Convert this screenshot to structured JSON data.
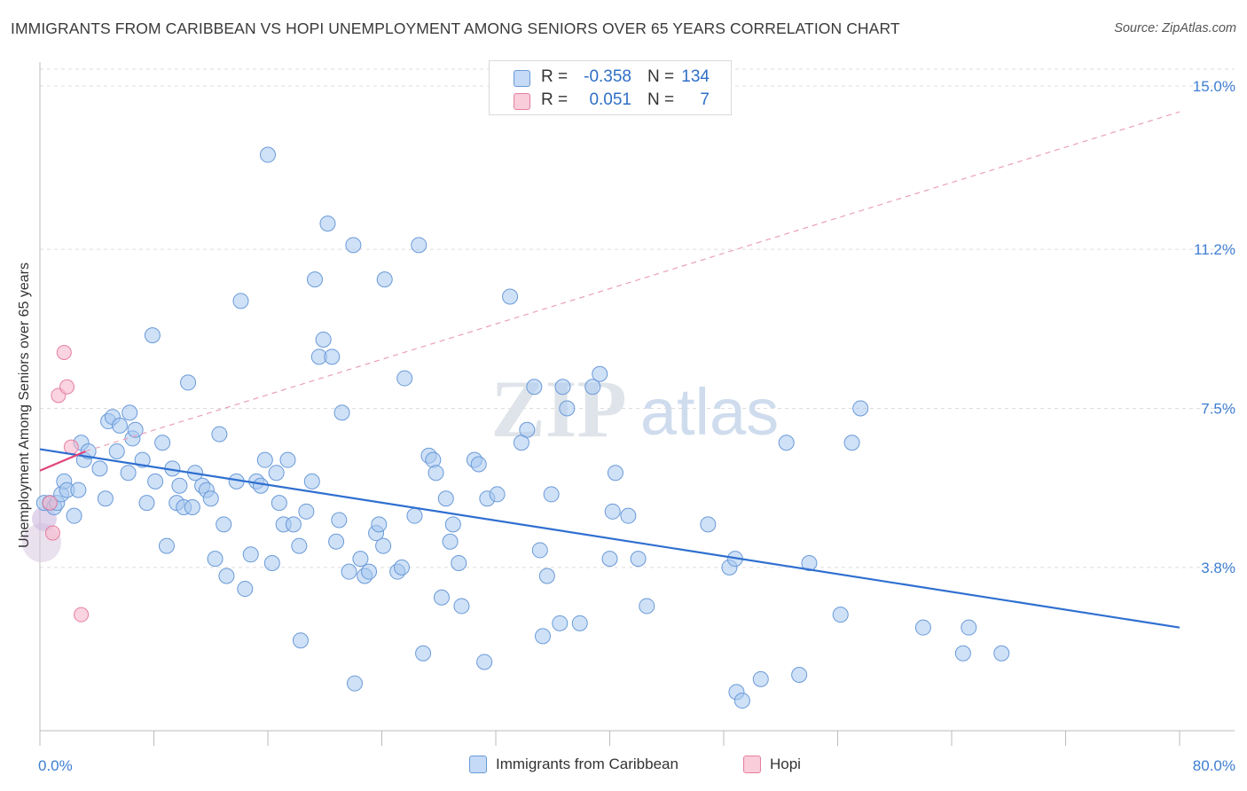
{
  "title": "IMMIGRANTS FROM CARIBBEAN VS HOPI UNEMPLOYMENT AMONG SENIORS OVER 65 YEARS CORRELATION CHART",
  "source": "Source: ZipAtlas.com",
  "watermark": {
    "zip": "ZIP",
    "atlas": "atlas"
  },
  "legend_top": {
    "rows": [
      {
        "r_label": "R =",
        "r_value": "-0.358",
        "n_label": "N =",
        "n_value": "134"
      },
      {
        "r_label": "R =",
        "r_value": "0.051",
        "n_label": "N =",
        "n_value": "7"
      }
    ]
  },
  "legend_bottom": {
    "series1": "Immigrants from Caribbean",
    "series2": "Hopi"
  },
  "colors": {
    "blue_fill": "#a8c8f0",
    "blue_stroke": "#6a9ad8",
    "blue_line": "#2f6fd0",
    "pink_fill": "#f7b8cc",
    "pink_stroke": "#e67fa0",
    "pink_line": "#e0457a",
    "tick_label": "#3f7ed2",
    "grid": "#dcdcdc"
  },
  "chart_data": {
    "type": "scatter",
    "title": "IMMIGRANTS FROM CARIBBEAN VS HOPI UNEMPLOYMENT AMONG SENIORS OVER 65 YEARS CORRELATION CHART",
    "xlabel": "",
    "ylabel": "Unemployment Among Seniors over 65 years",
    "xlim": [
      0,
      80
    ],
    "ylim": [
      0,
      15.4
    ],
    "x_tick_labels": [
      {
        "value": 0,
        "label": "0.0%"
      },
      {
        "value": 80,
        "label": "80.0%"
      }
    ],
    "y_ticks": [
      {
        "value": 3.8,
        "label": "3.8%"
      },
      {
        "value": 7.5,
        "label": "7.5%"
      },
      {
        "value": 11.2,
        "label": "11.2%"
      },
      {
        "value": 15.0,
        "label": "15.0%"
      }
    ],
    "series": [
      {
        "name": "Immigrants from Caribbean",
        "color": "#a8c8f0",
        "trend": {
          "x": [
            0,
            80
          ],
          "y": [
            6.55,
            2.4
          ]
        },
        "points": [
          [
            0.3,
            5.3
          ],
          [
            0.7,
            5.3
          ],
          [
            1.0,
            5.2
          ],
          [
            1.2,
            5.3
          ],
          [
            1.5,
            5.5
          ],
          [
            1.7,
            5.8
          ],
          [
            1.9,
            5.6
          ],
          [
            2.4,
            5.0
          ],
          [
            2.7,
            5.6
          ],
          [
            2.9,
            6.7
          ],
          [
            3.1,
            6.3
          ],
          [
            3.4,
            6.5
          ],
          [
            4.2,
            6.1
          ],
          [
            4.6,
            5.4
          ],
          [
            4.8,
            7.2
          ],
          [
            5.1,
            7.3
          ],
          [
            5.4,
            6.5
          ],
          [
            5.6,
            7.1
          ],
          [
            6.2,
            6.0
          ],
          [
            6.3,
            7.4
          ],
          [
            6.5,
            6.8
          ],
          [
            6.7,
            7.0
          ],
          [
            7.2,
            6.3
          ],
          [
            7.5,
            5.3
          ],
          [
            7.9,
            9.2
          ],
          [
            8.1,
            5.8
          ],
          [
            8.6,
            6.7
          ],
          [
            8.9,
            4.3
          ],
          [
            9.3,
            6.1
          ],
          [
            9.6,
            5.3
          ],
          [
            9.8,
            5.7
          ],
          [
            10.1,
            5.2
          ],
          [
            10.4,
            8.1
          ],
          [
            10.7,
            5.2
          ],
          [
            10.9,
            6.0
          ],
          [
            11.4,
            5.7
          ],
          [
            11.7,
            5.6
          ],
          [
            12.0,
            5.4
          ],
          [
            12.3,
            4.0
          ],
          [
            12.6,
            6.9
          ],
          [
            12.9,
            4.8
          ],
          [
            13.1,
            3.6
          ],
          [
            13.8,
            5.8
          ],
          [
            14.1,
            10.0
          ],
          [
            14.4,
            3.3
          ],
          [
            14.8,
            4.1
          ],
          [
            15.2,
            5.8
          ],
          [
            15.5,
            5.7
          ],
          [
            15.8,
            6.3
          ],
          [
            16.0,
            13.4
          ],
          [
            16.3,
            3.9
          ],
          [
            16.6,
            6.0
          ],
          [
            16.8,
            5.3
          ],
          [
            17.1,
            4.8
          ],
          [
            17.4,
            6.3
          ],
          [
            17.8,
            4.8
          ],
          [
            18.2,
            4.3
          ],
          [
            18.3,
            2.1
          ],
          [
            18.7,
            5.1
          ],
          [
            19.1,
            5.8
          ],
          [
            19.3,
            10.5
          ],
          [
            19.6,
            8.7
          ],
          [
            19.9,
            9.1
          ],
          [
            20.2,
            11.8
          ],
          [
            20.5,
            8.7
          ],
          [
            20.8,
            4.4
          ],
          [
            21.0,
            4.9
          ],
          [
            21.2,
            7.4
          ],
          [
            21.7,
            3.7
          ],
          [
            22.0,
            11.3
          ],
          [
            22.1,
            1.1
          ],
          [
            22.5,
            4.0
          ],
          [
            22.8,
            3.6
          ],
          [
            23.1,
            3.7
          ],
          [
            23.6,
            4.6
          ],
          [
            23.8,
            4.8
          ],
          [
            24.1,
            4.3
          ],
          [
            24.2,
            10.5
          ],
          [
            25.1,
            3.7
          ],
          [
            25.4,
            3.8
          ],
          [
            25.6,
            8.2
          ],
          [
            26.3,
            5.0
          ],
          [
            26.6,
            11.3
          ],
          [
            26.9,
            1.8
          ],
          [
            27.3,
            6.4
          ],
          [
            27.6,
            6.3
          ],
          [
            27.8,
            6.0
          ],
          [
            28.2,
            3.1
          ],
          [
            28.5,
            5.4
          ],
          [
            28.8,
            4.4
          ],
          [
            29.0,
            4.8
          ],
          [
            29.4,
            3.9
          ],
          [
            29.6,
            2.9
          ],
          [
            30.5,
            6.3
          ],
          [
            30.8,
            6.2
          ],
          [
            31.2,
            1.6
          ],
          [
            31.4,
            5.4
          ],
          [
            32.1,
            5.5
          ],
          [
            33.0,
            10.1
          ],
          [
            33.8,
            6.7
          ],
          [
            34.2,
            7.0
          ],
          [
            34.7,
            8.0
          ],
          [
            35.1,
            4.2
          ],
          [
            35.3,
            2.2
          ],
          [
            35.6,
            3.6
          ],
          [
            35.9,
            5.5
          ],
          [
            36.5,
            2.5
          ],
          [
            36.7,
            8.0
          ],
          [
            37.0,
            7.5
          ],
          [
            37.9,
            2.5
          ],
          [
            38.8,
            8.0
          ],
          [
            39.3,
            8.3
          ],
          [
            40.0,
            4.0
          ],
          [
            40.2,
            5.1
          ],
          [
            40.4,
            6.0
          ],
          [
            41.3,
            5.0
          ],
          [
            42.0,
            4.0
          ],
          [
            42.6,
            2.9
          ],
          [
            46.9,
            4.8
          ],
          [
            48.4,
            3.8
          ],
          [
            48.8,
            4.0
          ],
          [
            48.9,
            0.9
          ],
          [
            49.3,
            0.7
          ],
          [
            50.6,
            1.2
          ],
          [
            52.4,
            6.7
          ],
          [
            53.3,
            1.3
          ],
          [
            56.2,
            2.7
          ],
          [
            57.6,
            7.5
          ],
          [
            62.0,
            2.4
          ],
          [
            64.8,
            1.8
          ],
          [
            65.2,
            2.4
          ],
          [
            67.5,
            1.8
          ],
          [
            57.0,
            6.7
          ],
          [
            54.0,
            3.9
          ]
        ]
      },
      {
        "name": "Hopi",
        "color": "#f7b8cc",
        "trend": {
          "x": [
            0,
            3.2
          ],
          "y": [
            6.05,
            6.5
          ]
        },
        "points": [
          [
            0.7,
            5.3
          ],
          [
            0.9,
            4.6
          ],
          [
            1.3,
            7.8
          ],
          [
            1.7,
            8.8
          ],
          [
            1.9,
            8.0
          ],
          [
            2.2,
            6.6
          ],
          [
            2.9,
            2.7
          ]
        ]
      }
    ]
  }
}
